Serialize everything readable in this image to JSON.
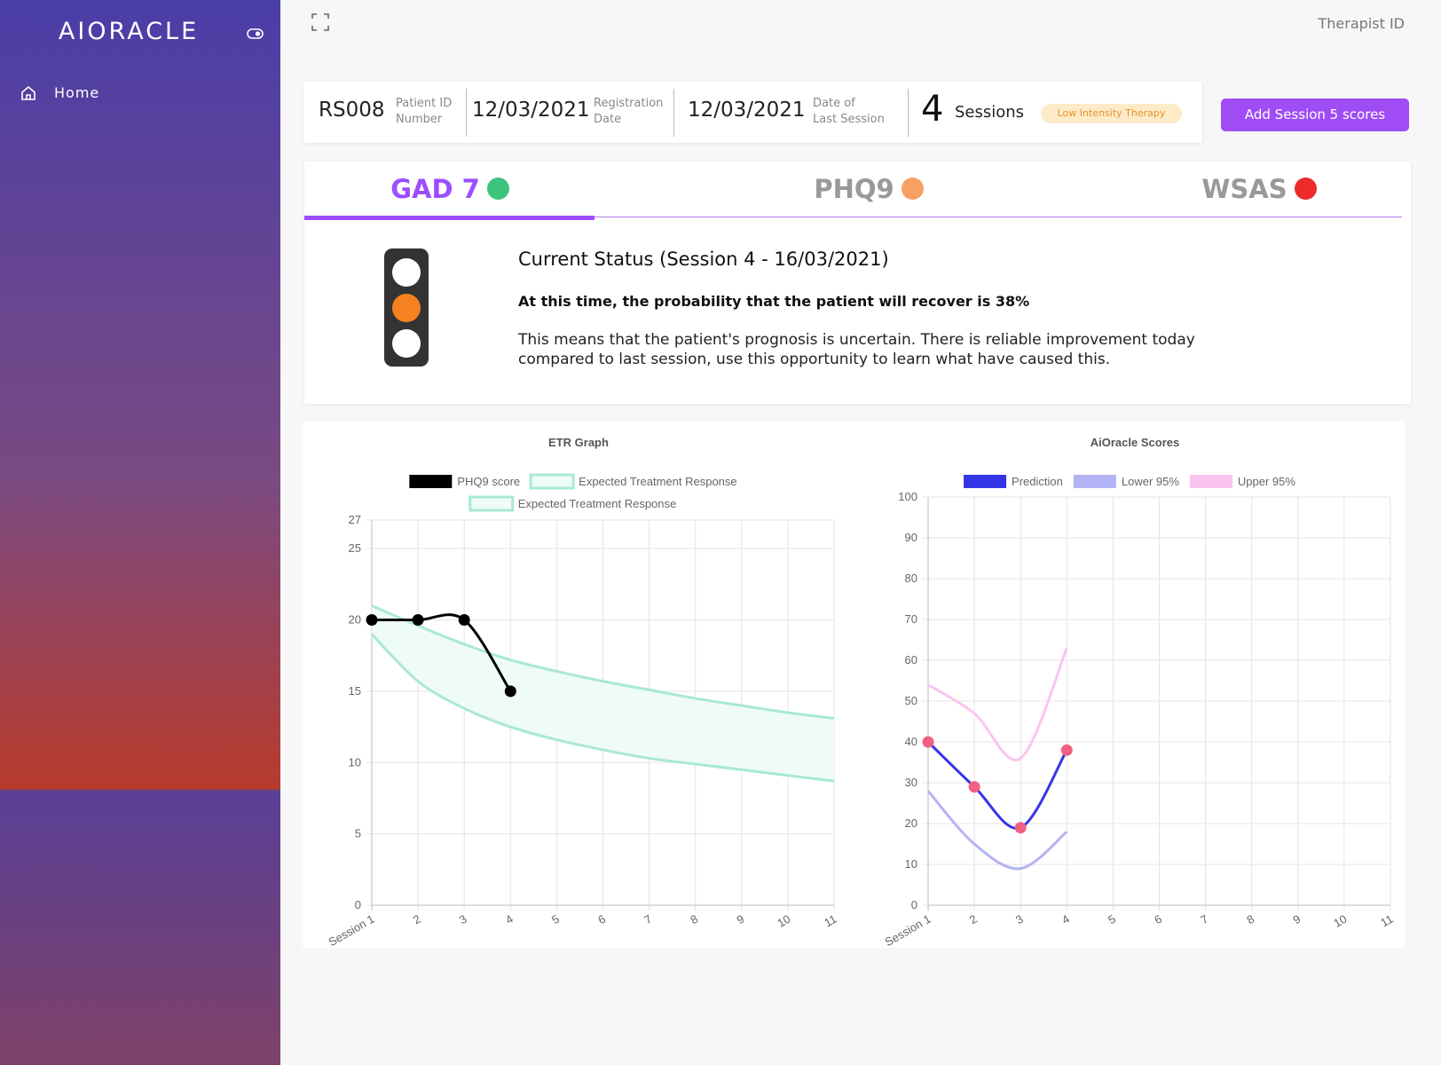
{
  "sidebar": {
    "brand": "AIORACLE",
    "nav": [
      "Home"
    ]
  },
  "topbar": {
    "user": "Therapist ID"
  },
  "patient_fields": [
    {
      "value": "RS008",
      "label": [
        "Patient ID",
        "Number"
      ]
    },
    {
      "value": "12/03/2021",
      "label": [
        "Registration",
        "Date"
      ]
    },
    {
      "value": "12/03/2021",
      "label": [
        "Date of",
        "Last Session"
      ]
    }
  ],
  "sessions": {
    "count": 4,
    "label": "Sessions"
  },
  "therapy": "Low Intensity Therapy",
  "action": "Add Session 5 scores",
  "tabs": [
    {
      "label": "GAD 7",
      "color": "#3cc47c",
      "active": true
    },
    {
      "label": "PHQ9",
      "color": "#f7a064",
      "active": false
    },
    {
      "label": "WSAS",
      "color": "#ee2a2a",
      "active": false
    }
  ],
  "status": {
    "title": "Current Status (Session 4 - 16/03/2021)",
    "headline": "At this time, the probability that the patient will recover is 38%",
    "body": "This means that the patient's prognosis is uncertain. There is reliable improvement today compared to last session, use this opportunity to learn what have caused this."
  },
  "chart_data": [
    {
      "type": "line",
      "title": "ETR Graph",
      "categories": [
        "Session 1",
        "2",
        "3",
        "4",
        "5",
        "6",
        "7",
        "8",
        "9",
        "10",
        "11"
      ],
      "series": [
        {
          "name": "PHQ9 score",
          "color": "#000000",
          "points": true,
          "values": [
            20,
            20,
            20,
            15,
            null,
            null,
            null,
            null,
            null,
            null,
            null
          ]
        },
        {
          "name": "Expected Treatment Response",
          "color": "#a8e8d8",
          "points": false,
          "values": [
            21,
            19.6,
            18.3,
            17.2,
            16.4,
            15.7,
            15.1,
            14.5,
            14.0,
            13.5,
            13.1
          ]
        },
        {
          "name": "Expected Treatment Response",
          "color": "#a8e8d8",
          "points": false,
          "values": [
            19,
            15.7,
            13.8,
            12.5,
            11.6,
            10.9,
            10.3,
            9.9,
            9.5,
            9.1,
            8.7
          ]
        }
      ],
      "band_fill": "#effbf7",
      "ylim": [
        0,
        27
      ],
      "yticks": [
        0,
        5,
        10,
        15,
        20,
        25,
        27
      ],
      "grid": true
    },
    {
      "type": "line",
      "title": "AiOracle Scores",
      "categories": [
        "Session 1",
        "2",
        "3",
        "4",
        "5",
        "6",
        "7",
        "8",
        "9",
        "10",
        "11"
      ],
      "series": [
        {
          "name": "Prediction",
          "color": "#3535e8",
          "points": true,
          "point_color": "#f06080",
          "values": [
            40,
            29,
            19,
            38,
            null,
            null,
            null,
            null,
            null,
            null,
            null
          ]
        },
        {
          "name": "Lower 95%",
          "color": "#b3b3f5",
          "points": false,
          "values": [
            28,
            15,
            9,
            18,
            null,
            null,
            null,
            null,
            null,
            null,
            null
          ]
        },
        {
          "name": "Upper 95%",
          "color": "#f9c5f0",
          "points": false,
          "values": [
            54,
            47,
            36,
            63,
            null,
            null,
            null,
            null,
            null,
            null,
            null
          ]
        }
      ],
      "ylim": [
        0,
        100
      ],
      "yticks": [
        0,
        10,
        20,
        30,
        40,
        50,
        60,
        70,
        80,
        90,
        100
      ],
      "grid": true
    }
  ]
}
